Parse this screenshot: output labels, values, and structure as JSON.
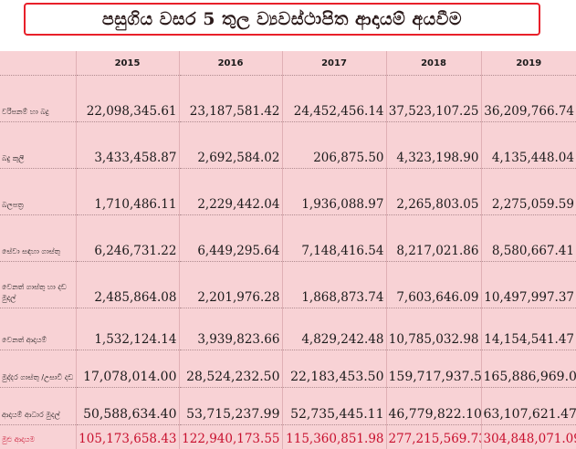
{
  "title": "පසුගිය වසර 5 තුල ව්‍යවස්ථාපිත ආදායම් අයවීම",
  "years": [
    "2015",
    "2016",
    "2017",
    "2018",
    "2019"
  ],
  "rows": [
    {
      "label": "වරිපනම් හා බදු",
      "values": [
        "22,098,345.61",
        "23,187,581.42",
        "24,452,456.14",
        "37,523,107.25",
        "36,209,766.74"
      ]
    },
    {
      "label": "බදු කුලී",
      "values": [
        "3,433,458.87",
        "2,692,584.02",
        "206,875.50",
        "4,323,198.90",
        "4,135,448.04"
      ]
    },
    {
      "label": "බලපත්‍ර",
      "values": [
        "1,710,486.11",
        "2,229,442.04",
        "1,936,088.97",
        "2,265,803.05",
        "2,275,059.59"
      ]
    },
    {
      "label": "සේවා සඳහා ගාස්තු",
      "values": [
        "6,246,731.22",
        "6,449,295.64",
        "7,148,416.54",
        "8,217,021.86",
        "8,580,667.41"
      ]
    },
    {
      "label": "වෙනත් ගාස්තු හා දඩ මුදල්",
      "values": [
        "2,485,864.08",
        "2,201,976.28",
        "1,868,873.74",
        "7,603,646.09",
        "10,497,997.37"
      ]
    },
    {
      "label": "වෙනත් ආදායම්",
      "values": [
        "1,532,124.14",
        "3,939,823.66",
        "4,829,242.48",
        "10,785,032.98",
        "14,154,541.47"
      ]
    },
    {
      "label": "මුද්දර ගාස්තු /උසාවි දඩ",
      "values": [
        "17,078,014.00",
        "28,524,232.50",
        "22,183,453.50",
        "159,717,937.50",
        "165,886,969.00"
      ]
    },
    {
      "label": "ආදායම් ආධාර මුදල්",
      "values": [
        "50,588,634.40",
        "53,715,237.99",
        "52,735,445.11",
        "46,779,822.10",
        "63,107,621.47"
      ]
    }
  ],
  "total": {
    "label": "මුළු ආදායම",
    "values": [
      "105,173,658.43",
      "122,940,173.55",
      "115,360,851.98",
      "277,215,569.73",
      "304,848,071.09"
    ]
  },
  "colors": {
    "background": "#f8d2d5",
    "title_border": "#e8202a",
    "total_text": "#c8102e"
  }
}
